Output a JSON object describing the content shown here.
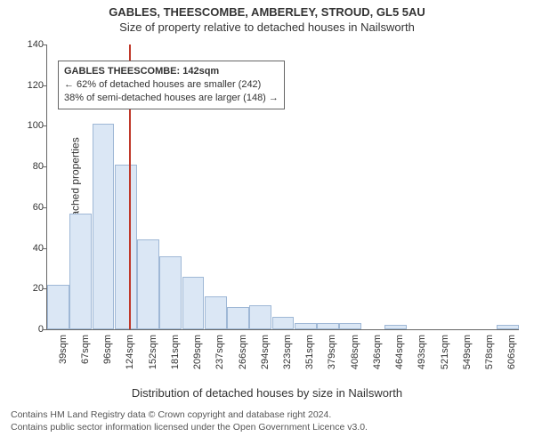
{
  "title_line1": "GABLES, THEESCOMBE, AMBERLEY, STROUD, GL5 5AU",
  "title_line2": "Size of property relative to detached houses in Nailsworth",
  "ylabel": "Number of detached properties",
  "xlabel": "Distribution of detached houses by size in Nailsworth",
  "footer_line1": "Contains HM Land Registry data © Crown copyright and database right 2024.",
  "footer_line2": "Contains public sector information licensed under the Open Government Licence v3.0.",
  "chart": {
    "type": "histogram",
    "background_color": "#ffffff",
    "bar_fill": "#dbe7f5",
    "bar_border": "#9fb8d6",
    "axis_color": "#666666",
    "ref_line_color": "#c0392b",
    "ref_value_sqm": 142,
    "ylim": [
      0,
      140
    ],
    "ytick_step": 20,
    "yticks": [
      0,
      20,
      40,
      60,
      80,
      100,
      120,
      140
    ],
    "xticks": [
      "39sqm",
      "67sqm",
      "96sqm",
      "124sqm",
      "152sqm",
      "181sqm",
      "209sqm",
      "237sqm",
      "266sqm",
      "294sqm",
      "323sqm",
      "351sqm",
      "379sqm",
      "408sqm",
      "436sqm",
      "464sqm",
      "493sqm",
      "521sqm",
      "549sqm",
      "578sqm",
      "606sqm"
    ],
    "bar_values": [
      22,
      57,
      101,
      81,
      44,
      36,
      26,
      16,
      11,
      12,
      6,
      3,
      3,
      3,
      0,
      2,
      0,
      0,
      0,
      0,
      2
    ],
    "infobox": {
      "border_color": "#666666",
      "background": "#ffffff",
      "line1": "GABLES THEESCOMBE: 142sqm",
      "line2": "← 62% of detached houses are smaller (242)",
      "line3": "38% of semi-detached houses are larger (148) →"
    }
  }
}
